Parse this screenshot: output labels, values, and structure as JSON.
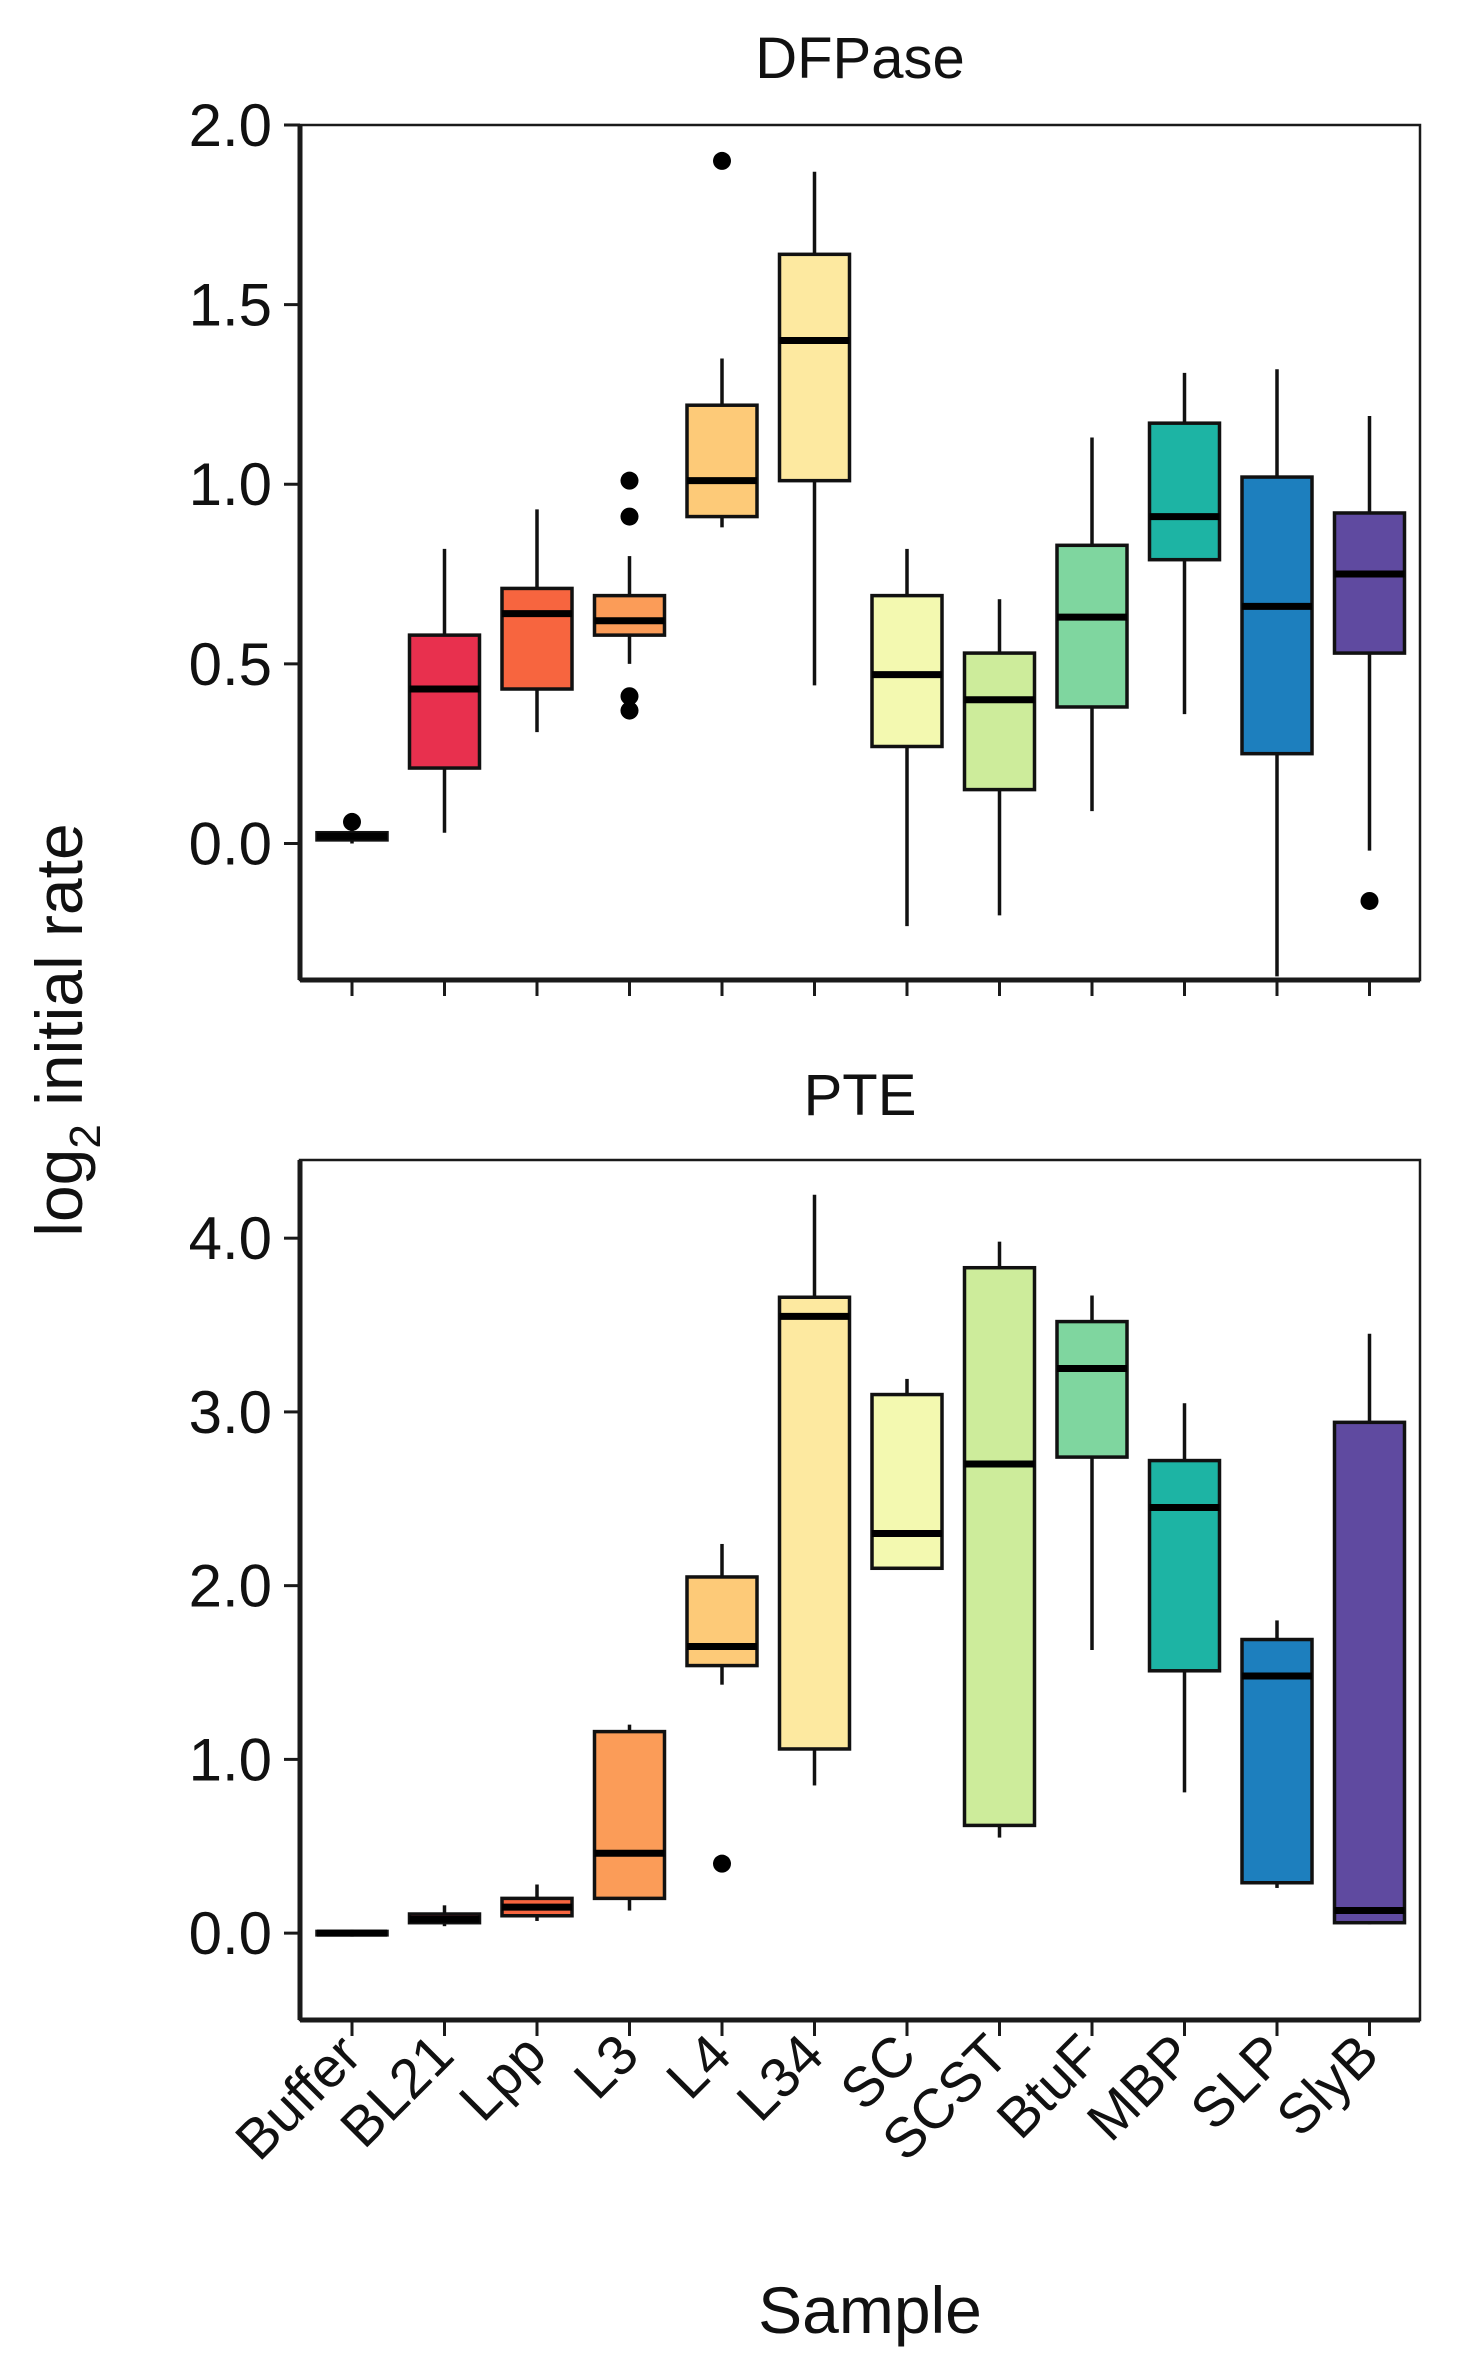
{
  "chart_data": [
    {
      "type": "boxplot",
      "title": "DFPase",
      "ylim": [
        -0.38,
        2.0
      ],
      "yticks": [
        0.0,
        0.5,
        1.0,
        1.5,
        2.0
      ],
      "ytick_labels": [
        "0.0",
        "0.5",
        "1.0",
        "1.5",
        "2.0"
      ],
      "xlabel": "Sample",
      "ylabel": "log2 initial rate",
      "categories": [
        "Buffer",
        "BL21",
        "Lpp",
        "L3",
        "L4",
        "L34",
        "SC",
        "SCST",
        "BtuF",
        "MBP",
        "SLP",
        "SlyB"
      ],
      "colors": [
        "#dcdcdc",
        "#e8304e",
        "#f7653f",
        "#fb9c58",
        "#fdca78",
        "#fde9a0",
        "#f3f9b0",
        "#cdec9b",
        "#7fd69f",
        "#1db4a4",
        "#1d7fbe",
        "#5f4aa0"
      ],
      "boxes": [
        {
          "label": "Buffer",
          "whisker_low": 0.0,
          "q1": 0.01,
          "median": 0.02,
          "q3": 0.03,
          "whisker_high": 0.04,
          "outliers": [
            0.06
          ]
        },
        {
          "label": "BL21",
          "whisker_low": 0.03,
          "q1": 0.21,
          "median": 0.43,
          "q3": 0.58,
          "whisker_high": 0.82,
          "outliers": []
        },
        {
          "label": "Lpp",
          "whisker_low": 0.31,
          "q1": 0.43,
          "median": 0.64,
          "q3": 0.71,
          "whisker_high": 0.93,
          "outliers": []
        },
        {
          "label": "L3",
          "whisker_low": 0.5,
          "q1": 0.58,
          "median": 0.62,
          "q3": 0.69,
          "whisker_high": 0.8,
          "outliers": [
            1.01,
            0.91,
            0.41,
            0.37
          ]
        },
        {
          "label": "L4",
          "whisker_low": 0.88,
          "q1": 0.91,
          "median": 1.01,
          "q3": 1.22,
          "whisker_high": 1.35,
          "outliers": [
            1.9
          ]
        },
        {
          "label": "L34",
          "whisker_low": 0.44,
          "q1": 1.01,
          "median": 1.4,
          "q3": 1.64,
          "whisker_high": 1.87,
          "outliers": []
        },
        {
          "label": "SC",
          "whisker_low": -0.23,
          "q1": 0.27,
          "median": 0.47,
          "q3": 0.69,
          "whisker_high": 0.82,
          "outliers": []
        },
        {
          "label": "SCST",
          "whisker_low": -0.2,
          "q1": 0.15,
          "median": 0.4,
          "q3": 0.53,
          "whisker_high": 0.68,
          "outliers": []
        },
        {
          "label": "BtuF",
          "whisker_low": 0.09,
          "q1": 0.38,
          "median": 0.63,
          "q3": 0.83,
          "whisker_high": 1.13,
          "outliers": []
        },
        {
          "label": "MBP",
          "whisker_low": 0.36,
          "q1": 0.79,
          "median": 0.91,
          "q3": 1.17,
          "whisker_high": 1.31,
          "outliers": []
        },
        {
          "label": "SLP",
          "whisker_low": -0.37,
          "q1": 0.25,
          "median": 0.66,
          "q3": 1.02,
          "whisker_high": 1.32,
          "outliers": []
        },
        {
          "label": "SlyB",
          "whisker_low": -0.02,
          "q1": 0.53,
          "median": 0.75,
          "q3": 0.92,
          "whisker_high": 1.19,
          "outliers": [
            -0.16
          ]
        }
      ]
    },
    {
      "type": "boxplot",
      "title": "PTE",
      "ylim": [
        -0.5,
        4.45
      ],
      "yticks": [
        0.0,
        1.0,
        2.0,
        3.0,
        4.0
      ],
      "ytick_labels": [
        "0.0",
        "1.0",
        "2.0",
        "3.0",
        "4.0"
      ],
      "xlabel": "Sample",
      "ylabel": "log2 initial rate",
      "categories": [
        "Buffer",
        "BL21",
        "Lpp",
        "L3",
        "L4",
        "L34",
        "SC",
        "SCST",
        "BtuF",
        "MBP",
        "SLP",
        "SlyB"
      ],
      "colors": [
        "#dcdcdc",
        "#e8304e",
        "#f7653f",
        "#fb9c58",
        "#fdca78",
        "#fde9a0",
        "#f3f9b0",
        "#cdec9b",
        "#7fd69f",
        "#1db4a4",
        "#1d7fbe",
        "#5f4aa0"
      ],
      "boxes": [
        {
          "label": "Buffer",
          "whisker_low": -0.02,
          "q1": -0.01,
          "median": 0.0,
          "q3": 0.01,
          "whisker_high": 0.02,
          "outliers": []
        },
        {
          "label": "BL21",
          "whisker_low": 0.04,
          "q1": 0.06,
          "median": 0.08,
          "q3": 0.11,
          "whisker_high": 0.16,
          "outliers": []
        },
        {
          "label": "Lpp",
          "whisker_low": 0.07,
          "q1": 0.1,
          "median": 0.15,
          "q3": 0.2,
          "whisker_high": 0.28,
          "outliers": []
        },
        {
          "label": "L3",
          "whisker_low": 0.13,
          "q1": 0.2,
          "median": 0.46,
          "q3": 1.16,
          "whisker_high": 1.2,
          "outliers": []
        },
        {
          "label": "L4",
          "whisker_low": 1.43,
          "q1": 1.54,
          "median": 1.65,
          "q3": 2.05,
          "whisker_high": 2.24,
          "outliers": [
            0.4
          ]
        },
        {
          "label": "L34",
          "whisker_low": 0.85,
          "q1": 1.06,
          "median": 3.55,
          "q3": 3.66,
          "whisker_high": 4.25,
          "outliers": []
        },
        {
          "label": "SC",
          "whisker_low": 2.1,
          "q1": 2.1,
          "median": 2.3,
          "q3": 3.1,
          "whisker_high": 3.19,
          "outliers": []
        },
        {
          "label": "SCST",
          "whisker_low": 0.55,
          "q1": 0.62,
          "median": 2.7,
          "q3": 3.83,
          "whisker_high": 3.98,
          "outliers": []
        },
        {
          "label": "BtuF",
          "whisker_low": 1.63,
          "q1": 2.74,
          "median": 3.25,
          "q3": 3.52,
          "whisker_high": 3.67,
          "outliers": []
        },
        {
          "label": "MBP",
          "whisker_low": 0.81,
          "q1": 1.51,
          "median": 2.45,
          "q3": 2.72,
          "whisker_high": 3.05,
          "outliers": []
        },
        {
          "label": "SLP",
          "whisker_low": 0.26,
          "q1": 0.29,
          "median": 1.48,
          "q3": 1.69,
          "whisker_high": 1.8,
          "outliers": []
        },
        {
          "label": "SlyB",
          "whisker_low": 0.05,
          "q1": 0.06,
          "median": 0.13,
          "q3": 2.94,
          "whisker_high": 3.45,
          "outliers": []
        }
      ]
    }
  ],
  "labels": {
    "ylabel_main": "log",
    "ylabel_sub": "2",
    "ylabel_rest": " initial rate",
    "xlabel": "Sample"
  }
}
